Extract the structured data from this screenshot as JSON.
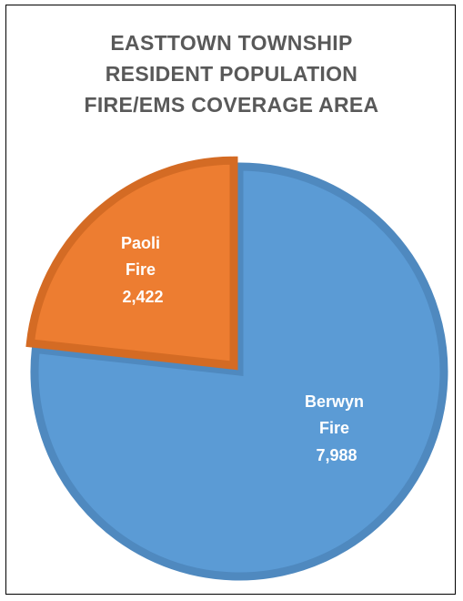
{
  "chart_data": {
    "type": "pie",
    "title_lines": [
      "EASTTOWN TOWNSHIP",
      "RESIDENT POPULATION",
      "FIRE/EMS COVERAGE AREA"
    ],
    "slices": [
      {
        "label_lines": [
          "Berwyn",
          "Fire"
        ],
        "value": 7988,
        "value_text": "7,988",
        "color": "#5b9bd5",
        "edge_color": "#4f89bf"
      },
      {
        "label_lines": [
          "Paoli",
          "Fire"
        ],
        "value": 2422,
        "value_text": "2,422",
        "color": "#ed7d31",
        "edge_color": "#d46b24",
        "exploded": true
      }
    ],
    "legend": "none",
    "grid": false
  }
}
